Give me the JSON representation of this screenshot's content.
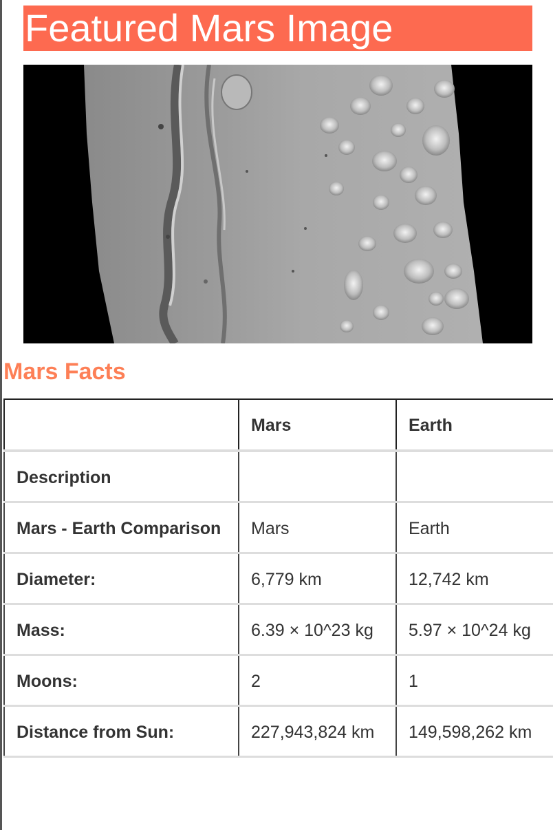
{
  "featured": {
    "title": "Featured Mars Image"
  },
  "facts": {
    "title": "Mars Facts",
    "headers": [
      "",
      "Mars",
      "Earth"
    ],
    "rows": [
      {
        "label": "Description",
        "mars": "",
        "earth": ""
      },
      {
        "label": "Mars - Earth Comparison",
        "mars": "Mars",
        "earth": "Earth"
      },
      {
        "label": "Diameter:",
        "mars": "6,779 km",
        "earth": "12,742 km"
      },
      {
        "label": "Mass:",
        "mars": "6.39 × 10^23 kg",
        "earth": "5.97 × 10^24 kg"
      },
      {
        "label": "Moons:",
        "mars": "2",
        "earth": "1"
      },
      {
        "label": "Distance from Sun:",
        "mars": "227,943,824 km",
        "earth": "149,598,262 km"
      }
    ]
  }
}
